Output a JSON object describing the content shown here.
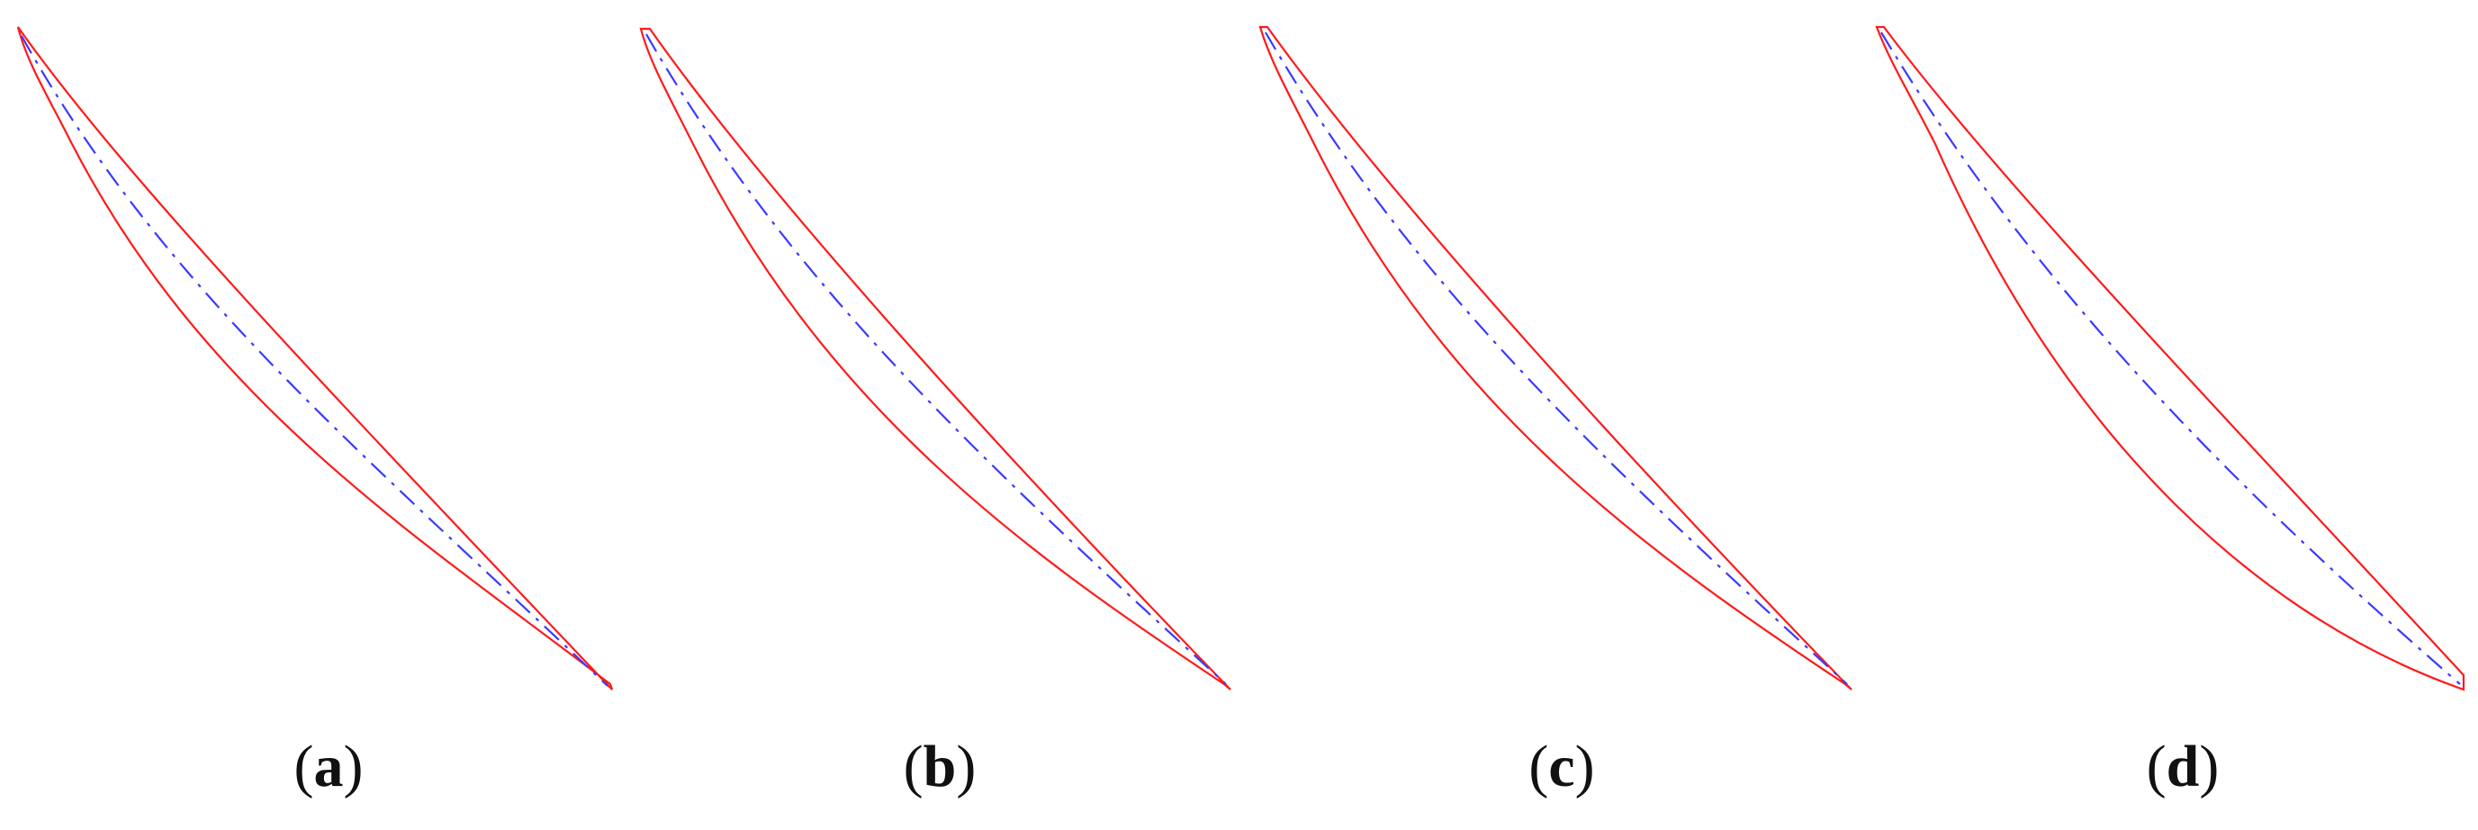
{
  "colors": {
    "blade_outline": "#ff1a1a",
    "camber_line": "#3a3aff",
    "label_text": "#111111",
    "background": "#ffffff"
  },
  "panels": [
    {
      "id": "a",
      "label": "a"
    },
    {
      "id": "b",
      "label": "b"
    },
    {
      "id": "c",
      "label": "c"
    },
    {
      "id": "d",
      "label": "d"
    }
  ]
}
